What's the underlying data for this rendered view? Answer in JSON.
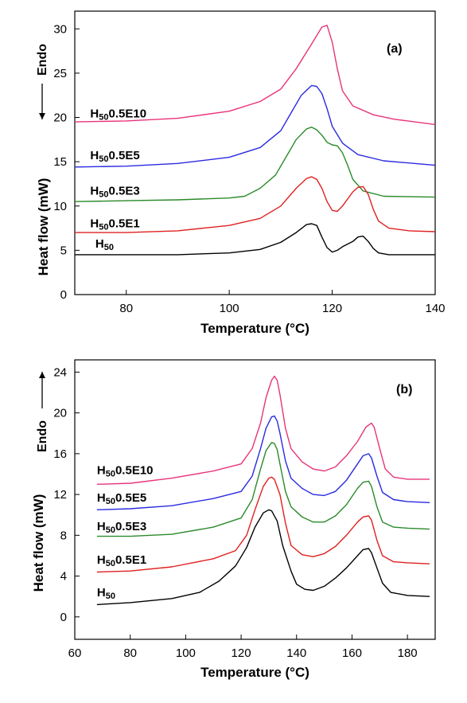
{
  "chart_data": [
    {
      "type": "line",
      "panel_label": "(a)",
      "xlabel": "Temperature (°C)",
      "ylabel": "Heat flow (mW)",
      "endo_label": "Endo",
      "endo_arrow": "down",
      "xlim": [
        70,
        140
      ],
      "ylim": [
        0,
        32
      ],
      "xticks": [
        80,
        100,
        120,
        140
      ],
      "yticks": [
        0,
        5,
        10,
        15,
        20,
        25,
        30
      ],
      "grid": false,
      "series": [
        {
          "name": "H500.5E10",
          "label_main": "H",
          "label_sub": "50",
          "label_rest": "0.5E10",
          "label_pos": [
            73,
            20.0
          ],
          "color": "#e8347a",
          "points": [
            [
              70,
              19.5
            ],
            [
              80,
              19.6
            ],
            [
              90,
              19.9
            ],
            [
              100,
              20.7
            ],
            [
              106,
              21.8
            ],
            [
              110,
              23.2
            ],
            [
              113,
              25.5
            ],
            [
              116,
              28.3
            ],
            [
              118,
              30.2
            ],
            [
              119,
              30.4
            ],
            [
              120,
              28.5
            ],
            [
              121,
              25.5
            ],
            [
              122,
              23.0
            ],
            [
              124,
              21.3
            ],
            [
              128,
              20.3
            ],
            [
              132,
              19.8
            ],
            [
              140,
              19.2
            ]
          ]
        },
        {
          "name": "H500.5E5",
          "label_main": "H",
          "label_sub": "50",
          "label_rest": "0.5E5",
          "label_pos": [
            73,
            15.3
          ],
          "color": "#2a2ae0",
          "points": [
            [
              70,
              14.4
            ],
            [
              80,
              14.5
            ],
            [
              90,
              14.8
            ],
            [
              100,
              15.5
            ],
            [
              106,
              16.6
            ],
            [
              110,
              18.5
            ],
            [
              112,
              20.5
            ],
            [
              114,
              22.5
            ],
            [
              116,
              23.6
            ],
            [
              117,
              23.5
            ],
            [
              118,
              22.7
            ],
            [
              119,
              21.0
            ],
            [
              120,
              19.0
            ],
            [
              122,
              17.1
            ],
            [
              125,
              15.8
            ],
            [
              130,
              15.1
            ],
            [
              140,
              14.6
            ]
          ]
        },
        {
          "name": "H500.5E3",
          "label_main": "H",
          "label_sub": "50",
          "label_rest": "0.5E3",
          "label_pos": [
            73,
            11.3
          ],
          "color": "#2a8a2a",
          "points": [
            [
              70,
              10.5
            ],
            [
              80,
              10.6
            ],
            [
              90,
              10.7
            ],
            [
              100,
              10.9
            ],
            [
              103,
              11.1
            ],
            [
              106,
              12.0
            ],
            [
              109,
              13.5
            ],
            [
              111,
              15.5
            ],
            [
              113,
              17.5
            ],
            [
              115,
              18.7
            ],
            [
              116,
              18.9
            ],
            [
              117,
              18.6
            ],
            [
              118,
              18.0
            ],
            [
              119,
              17.2
            ],
            [
              120,
              16.9
            ],
            [
              121,
              16.8
            ],
            [
              122,
              16.0
            ],
            [
              123,
              14.6
            ],
            [
              124,
              13.0
            ],
            [
              126,
              11.7
            ],
            [
              130,
              11.1
            ],
            [
              140,
              11.0
            ]
          ]
        },
        {
          "name": "H500.5E1",
          "label_main": "H",
          "label_sub": "50",
          "label_rest": "0.5E1",
          "label_pos": [
            73,
            7.6
          ],
          "color": "#e02020",
          "points": [
            [
              70,
              7.0
            ],
            [
              80,
              7.0
            ],
            [
              90,
              7.2
            ],
            [
              100,
              7.8
            ],
            [
              106,
              8.6
            ],
            [
              110,
              10.0
            ],
            [
              113,
              12.0
            ],
            [
              115,
              13.1
            ],
            [
              116,
              13.3
            ],
            [
              117,
              13.0
            ],
            [
              118,
              12.0
            ],
            [
              119,
              10.5
            ],
            [
              120,
              9.5
            ],
            [
              121,
              9.4
            ],
            [
              122,
              10.0
            ],
            [
              124,
              11.6
            ],
            [
              125,
              12.1
            ],
            [
              126,
              12.2
            ],
            [
              127,
              11.3
            ],
            [
              128,
              9.6
            ],
            [
              129,
              8.3
            ],
            [
              131,
              7.5
            ],
            [
              135,
              7.2
            ],
            [
              140,
              7.1
            ]
          ]
        },
        {
          "name": "H50",
          "label_main": "H",
          "label_sub": "50",
          "label_rest": "",
          "label_pos": [
            74,
            5.3
          ],
          "color": "#000000",
          "points": [
            [
              70,
              4.5
            ],
            [
              90,
              4.5
            ],
            [
              100,
              4.7
            ],
            [
              106,
              5.1
            ],
            [
              110,
              5.9
            ],
            [
              113,
              7.0
            ],
            [
              115,
              7.9
            ],
            [
              116,
              8.0
            ],
            [
              117,
              7.8
            ],
            [
              118,
              6.5
            ],
            [
              119,
              5.3
            ],
            [
              120,
              4.8
            ],
            [
              121,
              5.0
            ],
            [
              122,
              5.4
            ],
            [
              124,
              6.0
            ],
            [
              125,
              6.5
            ],
            [
              126,
              6.6
            ],
            [
              127,
              6.0
            ],
            [
              128,
              5.2
            ],
            [
              129,
              4.7
            ],
            [
              131,
              4.5
            ],
            [
              140,
              4.5
            ]
          ]
        }
      ]
    },
    {
      "type": "line",
      "panel_label": "(b)",
      "xlabel": "Temperature (°C)",
      "ylabel": "Heat flow (mW)",
      "endo_label": "Endo",
      "endo_arrow": "up",
      "xlim": [
        60,
        190
      ],
      "ylim": [
        -2.2,
        25.2
      ],
      "xticks": [
        60,
        80,
        100,
        120,
        140,
        160,
        180
      ],
      "yticks": [
        0,
        4,
        8,
        12,
        16,
        20,
        24
      ],
      "grid": false,
      "series": [
        {
          "name": "H500.5E10",
          "label_main": "H",
          "label_sub": "50",
          "label_rest": "0.5E10",
          "label_pos": [
            68,
            14.0
          ],
          "color": "#e8347a",
          "points": [
            [
              68,
              13.0
            ],
            [
              80,
              13.1
            ],
            [
              95,
              13.6
            ],
            [
              110,
              14.3
            ],
            [
              120,
              15.0
            ],
            [
              124,
              16.5
            ],
            [
              127,
              19.0
            ],
            [
              129,
              21.5
            ],
            [
              131,
              23.2
            ],
            [
              132,
              23.6
            ],
            [
              133,
              23.2
            ],
            [
              134,
              21.8
            ],
            [
              136,
              18.5
            ],
            [
              138,
              16.5
            ],
            [
              142,
              15.2
            ],
            [
              146,
              14.5
            ],
            [
              150,
              14.3
            ],
            [
              154,
              14.7
            ],
            [
              158,
              15.8
            ],
            [
              162,
              17.2
            ],
            [
              165,
              18.6
            ],
            [
              167,
              19.0
            ],
            [
              168,
              18.6
            ],
            [
              170,
              16.5
            ],
            [
              172,
              14.5
            ],
            [
              175,
              13.7
            ],
            [
              180,
              13.5
            ],
            [
              188,
              13.5
            ]
          ]
        },
        {
          "name": "H500.5E5",
          "label_main": "H",
          "label_sub": "50",
          "label_rest": "0.5E5",
          "label_pos": [
            68,
            11.3
          ],
          "color": "#2a2ae0",
          "points": [
            [
              68,
              10.5
            ],
            [
              80,
              10.6
            ],
            [
              95,
              10.9
            ],
            [
              110,
              11.6
            ],
            [
              120,
              12.3
            ],
            [
              124,
              13.8
            ],
            [
              127,
              16.5
            ],
            [
              129,
              18.5
            ],
            [
              131,
              19.6
            ],
            [
              132,
              19.7
            ],
            [
              133,
              19.2
            ],
            [
              134,
              18.0
            ],
            [
              136,
              15.3
            ],
            [
              138,
              13.6
            ],
            [
              142,
              12.6
            ],
            [
              146,
              12.0
            ],
            [
              150,
              11.9
            ],
            [
              154,
              12.3
            ],
            [
              158,
              13.4
            ],
            [
              162,
              15.0
            ],
            [
              164,
              15.8
            ],
            [
              166,
              16.0
            ],
            [
              167,
              15.6
            ],
            [
              169,
              13.8
            ],
            [
              171,
              12.2
            ],
            [
              175,
              11.5
            ],
            [
              180,
              11.3
            ],
            [
              188,
              11.2
            ]
          ]
        },
        {
          "name": "H500.5E3",
          "label_main": "H",
          "label_sub": "50",
          "label_rest": "0.5E3",
          "label_pos": [
            68,
            8.5
          ],
          "color": "#2a8a2a",
          "points": [
            [
              68,
              7.9
            ],
            [
              80,
              7.9
            ],
            [
              95,
              8.1
            ],
            [
              110,
              8.8
            ],
            [
              120,
              9.7
            ],
            [
              124,
              11.5
            ],
            [
              127,
              14.5
            ],
            [
              129,
              16.3
            ],
            [
              131,
              17.1
            ],
            [
              132,
              17.0
            ],
            [
              133,
              16.4
            ],
            [
              134,
              15.0
            ],
            [
              136,
              12.3
            ],
            [
              138,
              10.8
            ],
            [
              142,
              9.8
            ],
            [
              146,
              9.3
            ],
            [
              150,
              9.3
            ],
            [
              154,
              9.9
            ],
            [
              158,
              11.0
            ],
            [
              162,
              12.6
            ],
            [
              164,
              13.2
            ],
            [
              166,
              13.3
            ],
            [
              167,
              12.8
            ],
            [
              169,
              10.8
            ],
            [
              171,
              9.3
            ],
            [
              175,
              8.8
            ],
            [
              180,
              8.7
            ],
            [
              188,
              8.6
            ]
          ]
        },
        {
          "name": "H500.5E1",
          "label_main": "H",
          "label_sub": "50",
          "label_rest": "0.5E1",
          "label_pos": [
            68,
            5.2
          ],
          "color": "#e02020",
          "points": [
            [
              68,
              4.4
            ],
            [
              80,
              4.5
            ],
            [
              95,
              4.9
            ],
            [
              110,
              5.7
            ],
            [
              118,
              6.5
            ],
            [
              122,
              8.0
            ],
            [
              125,
              10.5
            ],
            [
              128,
              12.8
            ],
            [
              130,
              13.6
            ],
            [
              131,
              13.7
            ],
            [
              132,
              13.5
            ],
            [
              134,
              12.0
            ],
            [
              136,
              9.2
            ],
            [
              138,
              7.0
            ],
            [
              142,
              6.1
            ],
            [
              146,
              5.9
            ],
            [
              150,
              6.2
            ],
            [
              154,
              6.9
            ],
            [
              158,
              8.0
            ],
            [
              162,
              9.3
            ],
            [
              164,
              9.8
            ],
            [
              166,
              9.9
            ],
            [
              167,
              9.5
            ],
            [
              169,
              7.5
            ],
            [
              171,
              6.0
            ],
            [
              175,
              5.4
            ],
            [
              180,
              5.3
            ],
            [
              188,
              5.2
            ]
          ]
        },
        {
          "name": "H50",
          "label_main": "H",
          "label_sub": "50",
          "label_rest": "",
          "label_pos": [
            68,
            2.0
          ],
          "color": "#000000",
          "points": [
            [
              68,
              1.2
            ],
            [
              80,
              1.4
            ],
            [
              95,
              1.8
            ],
            [
              105,
              2.4
            ],
            [
              112,
              3.5
            ],
            [
              118,
              5.0
            ],
            [
              122,
              6.8
            ],
            [
              125,
              8.8
            ],
            [
              128,
              10.2
            ],
            [
              130,
              10.5
            ],
            [
              131,
              10.4
            ],
            [
              133,
              9.4
            ],
            [
              135,
              7.0
            ],
            [
              138,
              4.5
            ],
            [
              140,
              3.2
            ],
            [
              143,
              2.7
            ],
            [
              146,
              2.6
            ],
            [
              150,
              3.0
            ],
            [
              154,
              3.8
            ],
            [
              158,
              4.8
            ],
            [
              162,
              6.0
            ],
            [
              164,
              6.6
            ],
            [
              166,
              6.7
            ],
            [
              167,
              6.3
            ],
            [
              169,
              4.8
            ],
            [
              171,
              3.3
            ],
            [
              174,
              2.4
            ],
            [
              180,
              2.1
            ],
            [
              188,
              2.0
            ]
          ]
        }
      ]
    }
  ]
}
